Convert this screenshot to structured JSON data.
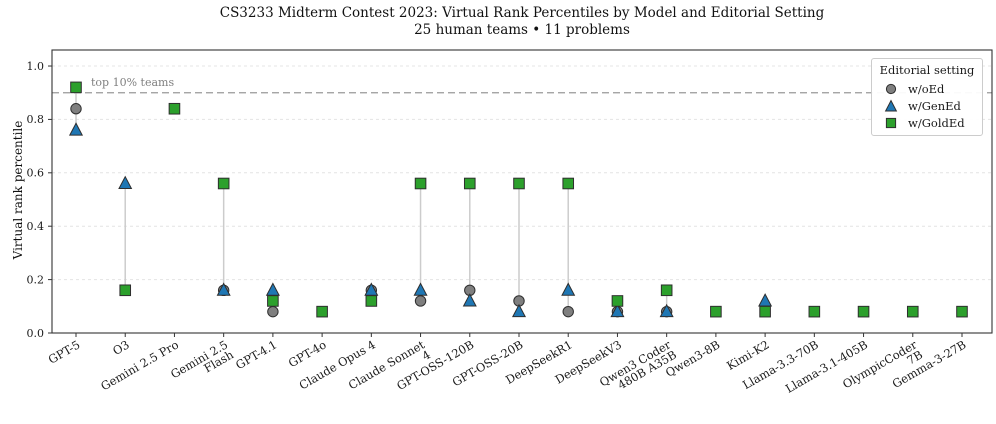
{
  "chart_data": {
    "type": "scatter",
    "title": "CS3233 Midterm Contest 2023: Virtual Rank Percentiles by Model and Editorial Setting",
    "subtitle": "25 human teams • 11 problems",
    "ylabel": "Virtual rank percentile",
    "xlabel": "",
    "ylim": [
      0,
      1.06
    ],
    "yticks": [
      0.0,
      0.2,
      0.4,
      0.6,
      0.8,
      1.0
    ],
    "grid": true,
    "legend_title": "Editorial setting",
    "legend_position": "upper right",
    "annotations": [
      {
        "text": "top 10% teams",
        "y": 0.9,
        "style": "dashed-line"
      }
    ],
    "categories": [
      "GPT-5",
      "O3",
      "Gemini 2.5 Pro",
      "Gemini 2.5\nFlash",
      "GPT-4.1",
      "GPT-4o",
      "Claude Opus 4",
      "Claude Sonnet\n4",
      "GPT-OSS-120B",
      "GPT-OSS-20B",
      "DeepSeekR1",
      "DeepSeekV3",
      "Qwen3 Coder\n480B A35B",
      "Qwen3-8B",
      "Kimi-K2",
      "Llama-3.3-70B",
      "Llama-3.1-405B",
      "OlympicCoder\n7B",
      "Gemma-3-27B"
    ],
    "series": [
      {
        "name": "w/oEd",
        "marker": "circle",
        "color": "#7f7f7f",
        "values": [
          0.84,
          null,
          null,
          0.16,
          0.08,
          null,
          0.16,
          0.12,
          0.16,
          0.12,
          0.08,
          0.08,
          0.08,
          null,
          null,
          null,
          null,
          null,
          null
        ]
      },
      {
        "name": "w/GenEd",
        "marker": "triangle",
        "color": "#1f77b4",
        "values": [
          0.76,
          0.56,
          null,
          0.16,
          0.16,
          null,
          0.16,
          0.16,
          0.12,
          0.08,
          0.16,
          0.08,
          0.08,
          null,
          0.12,
          null,
          null,
          null,
          null
        ]
      },
      {
        "name": "w/GoldEd",
        "marker": "square",
        "color": "#2ca02c",
        "values": [
          0.92,
          0.16,
          0.84,
          0.56,
          0.12,
          0.08,
          0.12,
          0.56,
          0.56,
          0.56,
          0.56,
          0.12,
          0.16,
          0.08,
          0.08,
          0.08,
          0.08,
          0.08,
          0.08
        ]
      }
    ]
  },
  "colors": {
    "background": "#ffffff",
    "grid": "#e4e4e4",
    "spine": "#333333",
    "tick": "#333333",
    "range_line": "#cccccc",
    "annotation_line": "#999999",
    "annotation_text": "#808080",
    "marker_edge": "#2e2e2e",
    "legend_border": "#cccccc"
  }
}
